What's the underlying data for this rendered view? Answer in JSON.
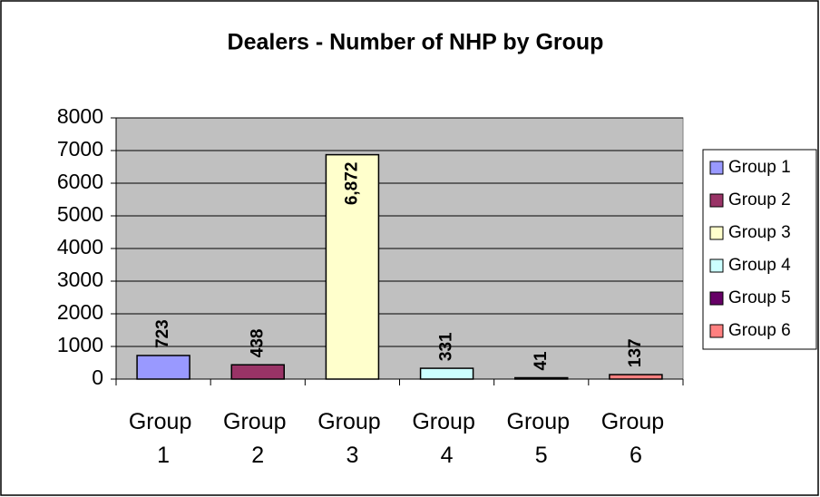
{
  "chart_data": {
    "type": "bar",
    "title": "Dealers - Number of NHP by Group",
    "categories": [
      "Group 1",
      "Group 2",
      "Group 3",
      "Group 4",
      "Group 5",
      "Group 6"
    ],
    "values": [
      723,
      438,
      6872,
      331,
      41,
      137
    ],
    "value_labels": [
      "723",
      "438",
      "6,872",
      "331",
      "41",
      "137"
    ],
    "colors": [
      "#9999ff",
      "#993366",
      "#ffffcc",
      "#ccffff",
      "#660066",
      "#ff8080"
    ],
    "ylim": [
      0,
      8000
    ],
    "yticks": [
      0,
      1000,
      2000,
      3000,
      4000,
      5000,
      6000,
      7000,
      8000
    ],
    "grid": true,
    "legend": "right"
  }
}
